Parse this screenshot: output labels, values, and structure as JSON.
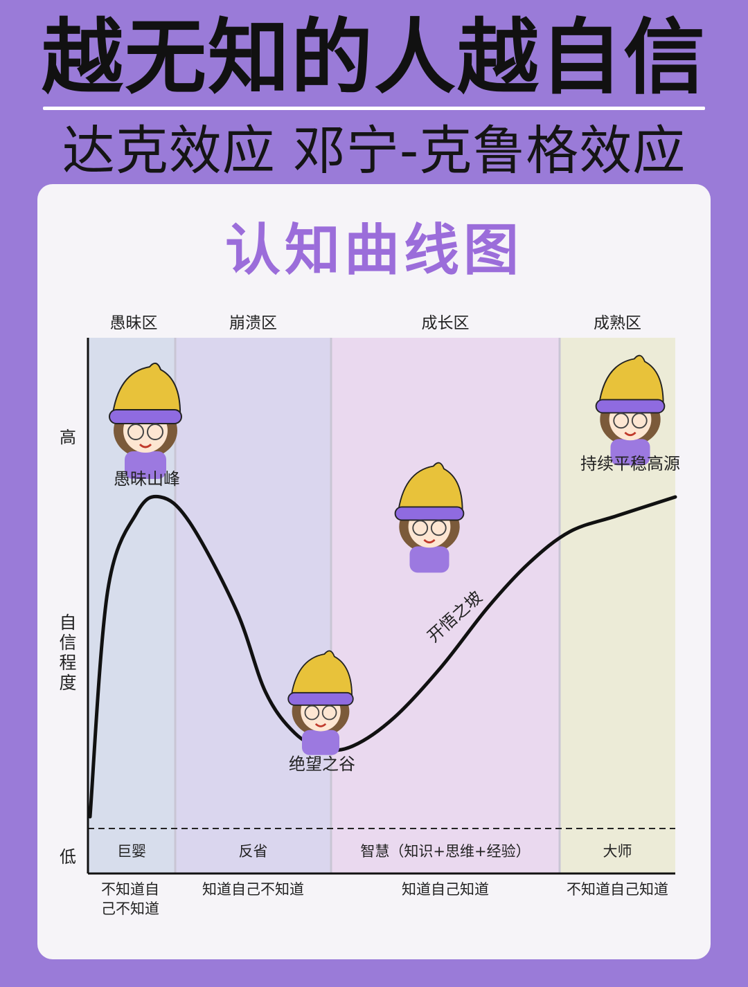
{
  "header": {
    "title": "越无知的人越自信",
    "subtitle": "达克效应 邓宁-克鲁格效应"
  },
  "chart_data": {
    "type": "line",
    "title": "认知曲线图",
    "ylabel": "自信程度",
    "y_ticks": [
      "高",
      "低"
    ],
    "zones": [
      {
        "name": "愚昧区",
        "stage": "巨婴",
        "awareness": "不知道自己不知道",
        "awareness_lines": [
          "不知道自",
          "己不知道"
        ],
        "color": "#d7ddec"
      },
      {
        "name": "崩溃区",
        "stage": "反省",
        "awareness": "知道自己不知道",
        "awareness_lines": [
          "知道自己不知道"
        ],
        "color": "#dad6ee"
      },
      {
        "name": "成长区",
        "stage": "智慧（知识+思维+经验）",
        "awareness": "知道自己知道",
        "awareness_lines": [
          "知道自己知道"
        ],
        "color": "#ead9ef"
      },
      {
        "name": "成熟区",
        "stage": "大师",
        "awareness": "不知道自己知道",
        "awareness_lines": [
          "不知道自己知道"
        ],
        "color": "#ecebd7"
      }
    ],
    "curve": [
      [
        0,
        3
      ],
      [
        3,
        58
      ],
      [
        8,
        83
      ],
      [
        12,
        88
      ],
      [
        17,
        80
      ],
      [
        25,
        52
      ],
      [
        30,
        26
      ],
      [
        35,
        13
      ],
      [
        40,
        8
      ],
      [
        45,
        9
      ],
      [
        52,
        18
      ],
      [
        60,
        34
      ],
      [
        68,
        53
      ],
      [
        75,
        67
      ],
      [
        82,
        77
      ],
      [
        90,
        82
      ],
      [
        100,
        88
      ]
    ],
    "annotations": [
      {
        "text": "愚昧山峰",
        "x": 10,
        "y": 88
      },
      {
        "text": "绝望之谷",
        "x": 40,
        "y": 8
      },
      {
        "text": "开悟之坡",
        "x": 62,
        "y": 38
      },
      {
        "text": "持续平稳高源",
        "x": 92,
        "y": 84
      }
    ],
    "xlim": [
      0,
      100
    ],
    "ylim": [
      0,
      100
    ],
    "colors": {
      "curve": "#111111",
      "hat": "#e8c23a",
      "hat_band": "#8f6be0",
      "shirt": "#9c79e0",
      "hair": "#7b5a3a",
      "pants": "#e6b830"
    }
  }
}
